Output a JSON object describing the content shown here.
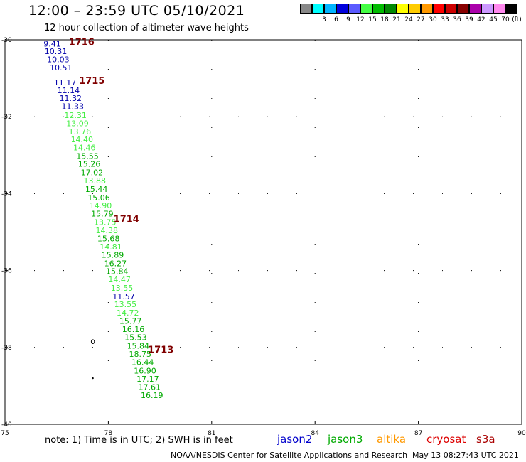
{
  "title": "12:00 – 23:59 UTC 05/10/2021",
  "subtitle": "12 hour collection of altimeter wave heights",
  "scale": {
    "unit": "(ft)",
    "levels": [
      {
        "label": "",
        "color": "#888888"
      },
      {
        "label": "3",
        "color": "#00ffff"
      },
      {
        "label": "6",
        "color": "#00b4ff"
      },
      {
        "label": "9",
        "color": "#0000dd"
      },
      {
        "label": "12",
        "color": "#5a5aff"
      },
      {
        "label": "15",
        "color": "#44ff44"
      },
      {
        "label": "18",
        "color": "#00bb00"
      },
      {
        "label": "21",
        "color": "#008800"
      },
      {
        "label": "24",
        "color": "#ffff00"
      },
      {
        "label": "27",
        "color": "#ffcc00"
      },
      {
        "label": "30",
        "color": "#ff9900"
      },
      {
        "label": "33",
        "color": "#ff0000"
      },
      {
        "label": "36",
        "color": "#cc0000"
      },
      {
        "label": "39",
        "color": "#880000"
      },
      {
        "label": "42",
        "color": "#aa00aa"
      },
      {
        "label": "45",
        "color": "#cc99ff"
      },
      {
        "label": "70",
        "color": "#ff88ee"
      },
      {
        "label": "",
        "color": "#000000"
      }
    ]
  },
  "axes": {
    "lat_labels": [
      "-30",
      "-32",
      "-34",
      "-36",
      "-38",
      "-40"
    ],
    "lon_labels": [
      "75",
      "78",
      "81",
      "84",
      "87",
      "90"
    ]
  },
  "times": [
    {
      "label": "1716",
      "color": "#800000",
      "lon": 76.85,
      "lat": -30.05
    },
    {
      "label": "1715",
      "color": "#800000",
      "lon": 77.15,
      "lat": -31.05
    },
    {
      "label": "1714",
      "color": "#800000",
      "lon": 78.15,
      "lat": -34.65
    },
    {
      "label": "1713",
      "color": "#800000",
      "lon": 79.15,
      "lat": -38.05
    }
  ],
  "heights": [
    {
      "v": "9.41",
      "lon": 76.12,
      "lat": -30.1,
      "c": "#0000aa"
    },
    {
      "v": "10.31",
      "lon": 76.15,
      "lat": -30.3,
      "c": "#0000aa"
    },
    {
      "v": "10.03",
      "lon": 76.22,
      "lat": -30.51,
      "c": "#0000aa"
    },
    {
      "v": "10.51",
      "lon": 76.3,
      "lat": -30.72,
      "c": "#0000aa"
    },
    {
      "v": "11.17",
      "lon": 76.42,
      "lat": -31.11,
      "c": "#0000aa"
    },
    {
      "v": "11.14",
      "lon": 76.52,
      "lat": -31.31,
      "c": "#0000aa"
    },
    {
      "v": "11.32",
      "lon": 76.58,
      "lat": -31.52,
      "c": "#0000aa"
    },
    {
      "v": "11.33",
      "lon": 76.64,
      "lat": -31.73,
      "c": "#0000aa"
    },
    {
      "v": "12.31",
      "lon": 76.72,
      "lat": -31.96,
      "c": "#44ee44"
    },
    {
      "v": "13.09",
      "lon": 76.78,
      "lat": -32.17,
      "c": "#44ee44"
    },
    {
      "v": "13.76",
      "lon": 76.85,
      "lat": -32.38,
      "c": "#44ee44"
    },
    {
      "v": "14.40",
      "lon": 76.91,
      "lat": -32.59,
      "c": "#44ee44"
    },
    {
      "v": "14.46",
      "lon": 76.98,
      "lat": -32.8,
      "c": "#44ee44"
    },
    {
      "v": "15.55",
      "lon": 77.07,
      "lat": -33.02,
      "c": "#00aa00"
    },
    {
      "v": "15.26",
      "lon": 77.12,
      "lat": -33.23,
      "c": "#00aa00"
    },
    {
      "v": "17.02",
      "lon": 77.2,
      "lat": -33.45,
      "c": "#00aa00"
    },
    {
      "v": "13.88",
      "lon": 77.28,
      "lat": -33.66,
      "c": "#44ee44"
    },
    {
      "v": "15.44",
      "lon": 77.33,
      "lat": -33.88,
      "c": "#00aa00"
    },
    {
      "v": "15.06",
      "lon": 77.4,
      "lat": -34.1,
      "c": "#00aa00"
    },
    {
      "v": "14.90",
      "lon": 77.45,
      "lat": -34.31,
      "c": "#44ee44"
    },
    {
      "v": "15.79",
      "lon": 77.5,
      "lat": -34.52,
      "c": "#00aa00"
    },
    {
      "v": "13.75",
      "lon": 77.58,
      "lat": -34.74,
      "c": "#44ee44"
    },
    {
      "v": "14.38",
      "lon": 77.63,
      "lat": -34.95,
      "c": "#44ee44"
    },
    {
      "v": "15.68",
      "lon": 77.68,
      "lat": -35.17,
      "c": "#00aa00"
    },
    {
      "v": "14.81",
      "lon": 77.75,
      "lat": -35.38,
      "c": "#44ee44"
    },
    {
      "v": "15.89",
      "lon": 77.8,
      "lat": -35.59,
      "c": "#00aa00"
    },
    {
      "v": "16.27",
      "lon": 77.88,
      "lat": -35.81,
      "c": "#00aa00"
    },
    {
      "v": "15.84",
      "lon": 77.93,
      "lat": -36.02,
      "c": "#00aa00"
    },
    {
      "v": "14.47",
      "lon": 78.0,
      "lat": -36.23,
      "c": "#44ee44"
    },
    {
      "v": "13.55",
      "lon": 78.07,
      "lat": -36.45,
      "c": "#44ee44"
    },
    {
      "v": "11.57",
      "lon": 78.12,
      "lat": -36.67,
      "c": "#0000aa"
    },
    {
      "v": "13.55",
      "lon": 78.17,
      "lat": -36.88,
      "c": "#44ee44"
    },
    {
      "v": "14.72",
      "lon": 78.24,
      "lat": -37.1,
      "c": "#44ee44"
    },
    {
      "v": "15.77",
      "lon": 78.32,
      "lat": -37.31,
      "c": "#00aa00"
    },
    {
      "v": "16.16",
      "lon": 78.4,
      "lat": -37.52,
      "c": "#00aa00"
    },
    {
      "v": "15.53",
      "lon": 78.47,
      "lat": -37.74,
      "c": "#00aa00"
    },
    {
      "v": "15.84",
      "lon": 78.54,
      "lat": -37.96,
      "c": "#00aa00"
    },
    {
      "v": "18.75",
      "lon": 78.6,
      "lat": -38.17,
      "c": "#00aa00"
    },
    {
      "v": "16.44",
      "lon": 78.67,
      "lat": -38.38,
      "c": "#00aa00"
    },
    {
      "v": "16.90",
      "lon": 78.74,
      "lat": -38.6,
      "c": "#00aa00"
    },
    {
      "v": "17.17",
      "lon": 78.82,
      "lat": -38.82,
      "c": "#00aa00"
    },
    {
      "v": "17.61",
      "lon": 78.87,
      "lat": -39.03,
      "c": "#00aa00"
    },
    {
      "v": "16.19",
      "lon": 78.94,
      "lat": -39.24,
      "c": "#00aa00"
    }
  ],
  "islands": [
    {
      "lon": 77.55,
      "lat": -37.85
    },
    {
      "lon": 77.55,
      "lat": -38.8
    }
  ],
  "note": "note:  1) Time is in UTC;  2) SWH is in feet",
  "legend": [
    {
      "label": "jason2",
      "color": "#0000cc"
    },
    {
      "label": "jason3",
      "color": "#00aa00"
    },
    {
      "label": "altika",
      "color": "#ff9900"
    },
    {
      "label": "cryosat",
      "color": "#dd0000"
    },
    {
      "label": "s3a",
      "color": "#aa0000"
    }
  ],
  "credit": "NOAA/NESDIS Center for Satellite Applications and Research",
  "generated": "May 13 08:27:43 UTC 2021"
}
